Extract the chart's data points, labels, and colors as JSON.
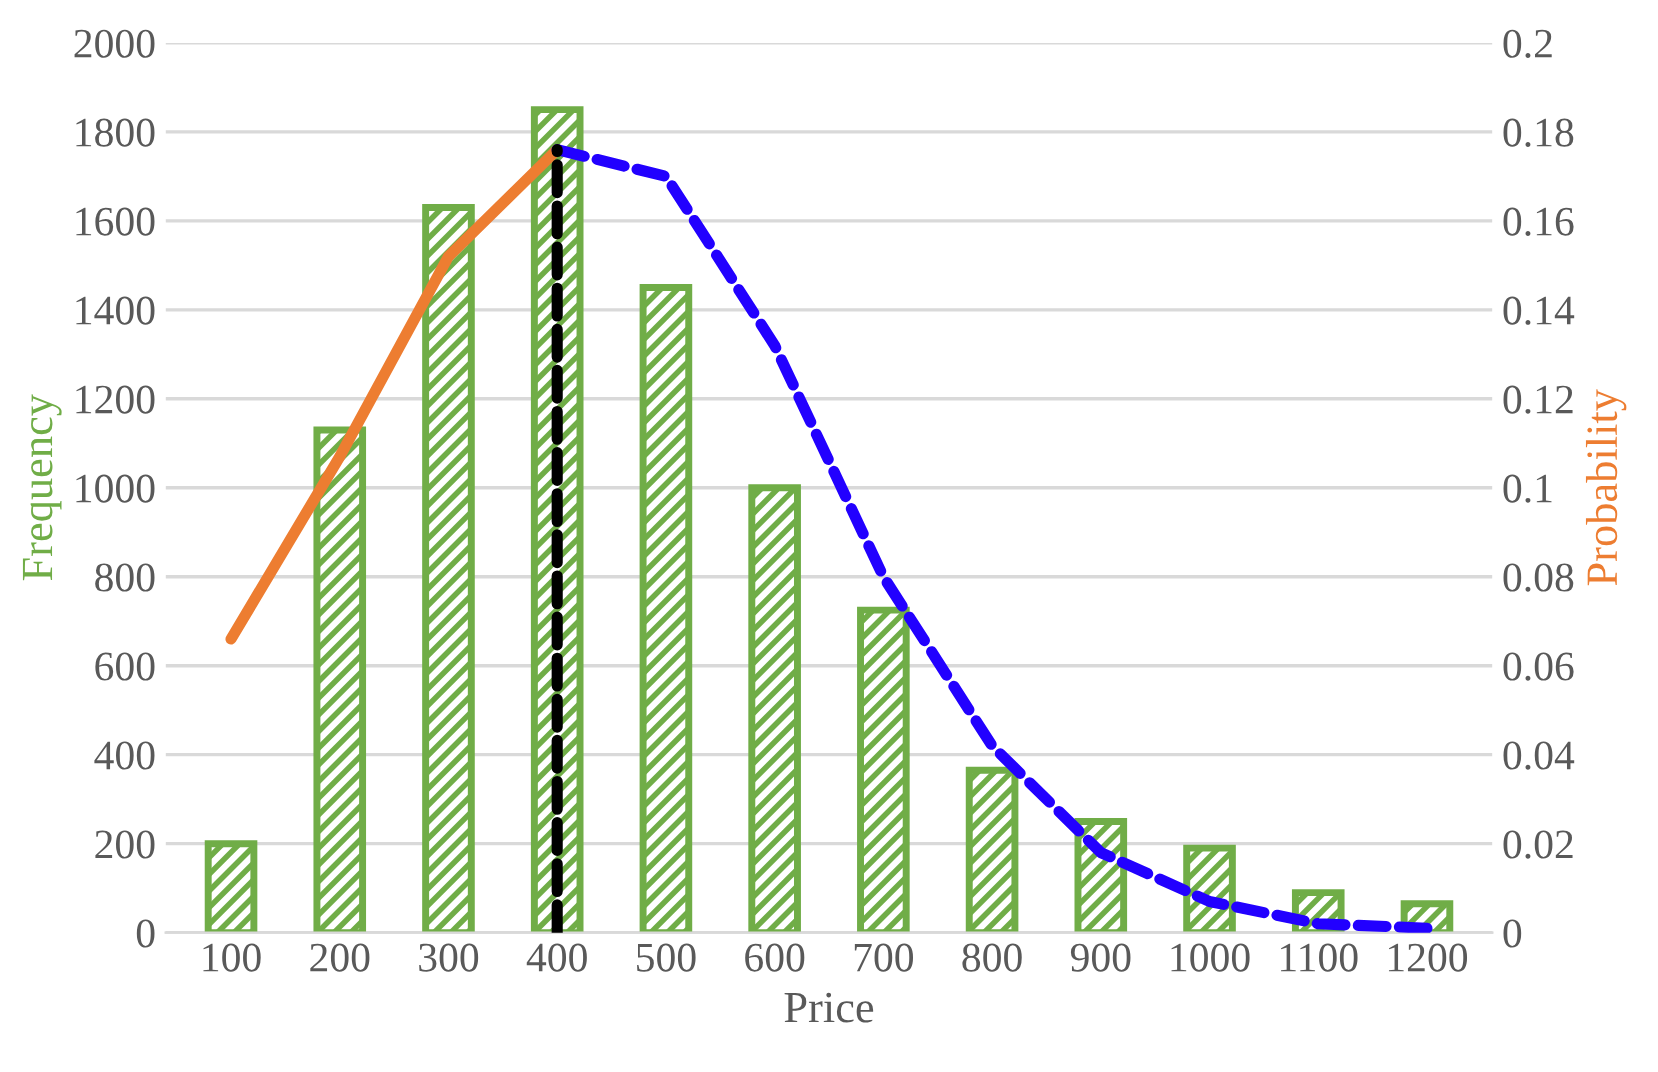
{
  "chart_data": {
    "type": "bar",
    "xlabel": "Price",
    "ylabel": "Frequency",
    "y2label": "Probability",
    "categories": [
      "100",
      "200",
      "300",
      "400",
      "500",
      "600",
      "700",
      "800",
      "900",
      "1000",
      "1100",
      "1200"
    ],
    "series": [
      {
        "color": "#70ad47",
        "values": [
          200,
          1130,
          1630,
          1850,
          1450,
          1000,
          725,
          365,
          250,
          190,
          90,
          65
        ]
      },
      {
        "type": "line",
        "axis": "y2",
        "color": "#ed7d31",
        "line_style": "solid",
        "values": [
          0.066,
          0.107,
          0.152,
          0.176,
          null,
          null,
          null,
          null,
          null,
          null,
          null,
          null
        ]
      },
      {
        "type": "line",
        "axis": "y2",
        "color": "#2200ff",
        "line_style": "dashed",
        "values": [
          null,
          null,
          null,
          0.176,
          0.17,
          0.132,
          0.08,
          0.042,
          0.018,
          0.007,
          0.002,
          0.001
        ]
      },
      {
        "type": "line",
        "axis": "y2",
        "color": "#000000",
        "line_style": "dashed",
        "x": [
          "400",
          "400"
        ],
        "values": [
          0,
          0.176
        ]
      }
    ],
    "ylim": [
      0,
      2000
    ],
    "yticks": [
      0,
      200,
      400,
      600,
      800,
      1000,
      1200,
      1400,
      1600,
      1800,
      2000
    ],
    "y2lim": [
      0,
      0.2
    ],
    "y2ticks": [
      0,
      0.02,
      0.04,
      0.06,
      0.08,
      0.1,
      0.12,
      0.14,
      0.16,
      0.18,
      0.2
    ],
    "grid": "y",
    "legend": false
  }
}
